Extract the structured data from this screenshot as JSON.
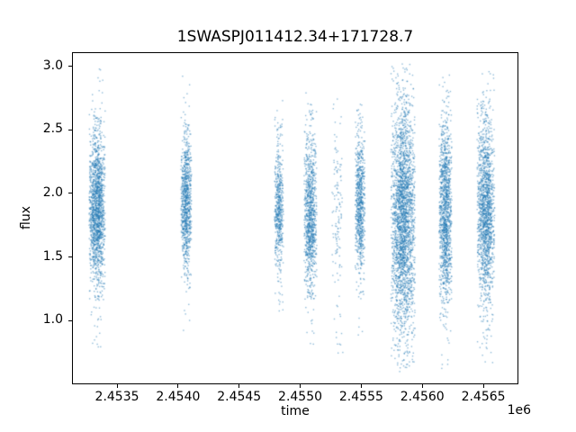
{
  "figure": {
    "background_color": "#ffffff",
    "spine_color": "#000000",
    "tick_color": "#000000",
    "text_color": "#000000"
  },
  "chart_data": {
    "type": "scatter",
    "title": "1SWASPJ011412.34+171728.7",
    "xlabel": "time",
    "ylabel": "flux",
    "x_offset_label": "1e6",
    "xlim": [
      2453131,
      2456787
    ],
    "ylim": [
      0.5,
      3.11
    ],
    "grid": false,
    "legend": null,
    "marker_color": "#1f77b4",
    "marker_alpha": 0.5,
    "marker_size_px": 1.4,
    "xticks": {
      "values": [
        2453500,
        2454000,
        2454500,
        2455000,
        2455500,
        2456000,
        2456500
      ],
      "labels": [
        "2.4535",
        "2.4540",
        "2.4545",
        "2.4550",
        "2.4555",
        "2.4560",
        "2.4565"
      ]
    },
    "yticks": {
      "values": [
        1.0,
        1.5,
        2.0,
        2.5,
        3.0
      ],
      "labels": [
        "1.0",
        "1.5",
        "2.0",
        "2.5",
        "3.0"
      ]
    },
    "series_representation": "clusters",
    "clusters": [
      {
        "x_center": 2453337,
        "x_halfwidth": 66,
        "n": 1600,
        "flux_mean": 1.87,
        "flux_sigma": 0.3,
        "flux_min": 0.78,
        "flux_max": 3.02
      },
      {
        "x_center": 2454067,
        "x_halfwidth": 44,
        "n": 900,
        "flux_mean": 1.92,
        "flux_sigma": 0.25,
        "flux_min": 0.9,
        "flux_max": 2.95
      },
      {
        "x_center": 2454826,
        "x_halfwidth": 37,
        "n": 550,
        "flux_mean": 1.88,
        "flux_sigma": 0.26,
        "flux_min": 1.0,
        "flux_max": 2.9
      },
      {
        "x_center": 2455084,
        "x_halfwidth": 52,
        "n": 1000,
        "flux_mean": 1.82,
        "flux_sigma": 0.3,
        "flux_min": 0.8,
        "flux_max": 2.85
      },
      {
        "x_center": 2455305,
        "x_halfwidth": 44,
        "n": 130,
        "flux_mean": 1.85,
        "flux_sigma": 0.45,
        "flux_min": 0.7,
        "flux_max": 2.75
      },
      {
        "x_center": 2455490,
        "x_halfwidth": 40,
        "n": 750,
        "flux_mean": 1.92,
        "flux_sigma": 0.28,
        "flux_min": 0.85,
        "flux_max": 2.75
      },
      {
        "x_center": 2455843,
        "x_halfwidth": 100,
        "n": 2600,
        "flux_mean": 1.8,
        "flux_sigma": 0.45,
        "flux_min": 0.6,
        "flux_max": 3.02
      },
      {
        "x_center": 2456190,
        "x_halfwidth": 52,
        "n": 1300,
        "flux_mean": 1.85,
        "flux_sigma": 0.33,
        "flux_min": 0.62,
        "flux_max": 2.95
      },
      {
        "x_center": 2456521,
        "x_halfwidth": 72,
        "n": 1600,
        "flux_mean": 1.85,
        "flux_sigma": 0.35,
        "flux_min": 0.62,
        "flux_max": 3.0
      }
    ]
  }
}
